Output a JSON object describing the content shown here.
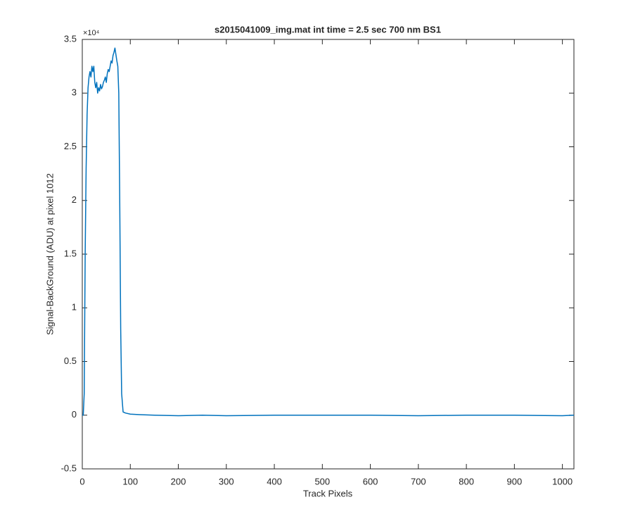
{
  "chart_data": {
    "type": "line",
    "title": "s2015041009_img.mat int time = 2.5 sec  700 nm BS1",
    "x_label": "Track Pixels",
    "y_label": "Signal-BackGround (ADU) at pixel 1012",
    "y_multiplier": "×10⁴",
    "color": "#0072bd",
    "x": [
      0,
      2,
      4,
      6,
      8,
      10,
      12,
      14,
      16,
      18,
      20,
      22,
      24,
      26,
      28,
      30,
      32,
      34,
      36,
      38,
      40,
      42,
      44,
      46,
      48,
      50,
      52,
      54,
      56,
      58,
      60,
      62,
      64,
      66,
      68,
      70,
      72,
      74,
      76,
      78,
      80,
      82,
      85,
      90,
      100,
      120,
      150,
      200,
      250,
      300,
      400,
      500,
      600,
      700,
      800,
      900,
      1000,
      1024
    ],
    "values": [
      0,
      0,
      0.2,
      1.5,
      2.3,
      2.8,
      3.05,
      3.15,
      3.2,
      3.15,
      3.25,
      3.2,
      3.25,
      3.1,
      3.05,
      3.1,
      3.0,
      3.05,
      3.02,
      3.08,
      3.04,
      3.06,
      3.1,
      3.12,
      3.15,
      3.1,
      3.18,
      3.22,
      3.2,
      3.25,
      3.3,
      3.28,
      3.35,
      3.38,
      3.42,
      3.36,
      3.3,
      3.25,
      3.0,
      2.0,
      0.8,
      0.2,
      0.03,
      0.02,
      0.01,
      0.005,
      0,
      -0.005,
      0,
      -0.005,
      0,
      0,
      0,
      -0.005,
      0,
      0,
      -0.005,
      0
    ],
    "xlim": [
      0,
      1024
    ],
    "ylim": [
      -0.5,
      3.5
    ],
    "xticks": [
      0,
      100,
      200,
      300,
      400,
      500,
      600,
      700,
      800,
      900,
      1000
    ],
    "yticks": [
      -0.5,
      0,
      0.5,
      1,
      1.5,
      2,
      2.5,
      3,
      3.5
    ],
    "grid": false
  }
}
